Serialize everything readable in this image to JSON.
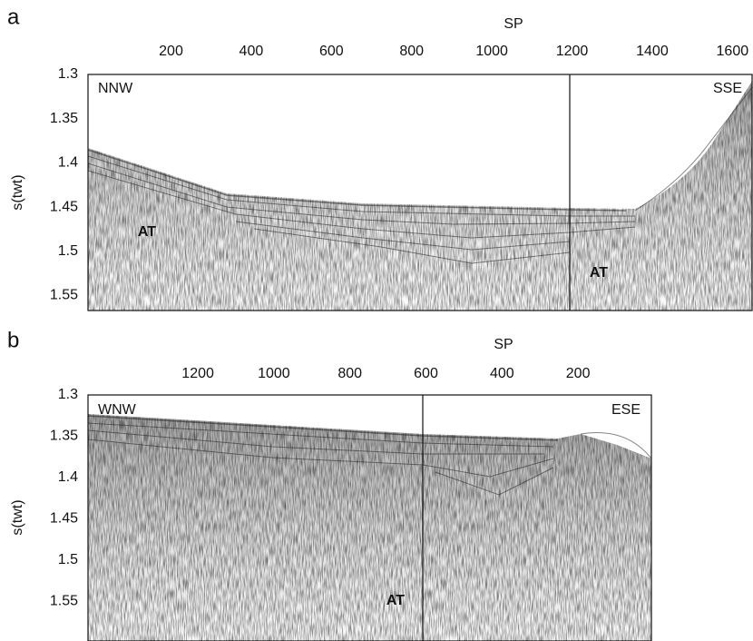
{
  "chart_data": [
    {
      "type": "seismic",
      "panel_label": "a",
      "x_label": "SP",
      "y_label": "s(twt)",
      "xlim": [
        -7,
        1649
      ],
      "ylim": [
        1.567,
        1.3
      ],
      "xticks": [
        200,
        400,
        600,
        800,
        1000,
        1200,
        1400,
        1600
      ],
      "yticks": [
        1.3,
        1.35,
        1.4,
        1.45,
        1.5,
        1.55
      ],
      "annotations": [
        "NNW",
        "SSE",
        "AT",
        "AT"
      ]
    },
    {
      "type": "seismic",
      "panel_label": "b",
      "x_label": "SP",
      "y_label": "s(twt)",
      "xlim": [
        1489,
        7
      ],
      "ylim": [
        1.598,
        1.3
      ],
      "xticks": [
        1200,
        1000,
        800,
        600,
        400,
        200
      ],
      "yticks": [
        1.3,
        1.35,
        1.4,
        1.45,
        1.5,
        1.55
      ],
      "annotations": [
        "WNW",
        "ESE",
        "AT"
      ]
    }
  ]
}
